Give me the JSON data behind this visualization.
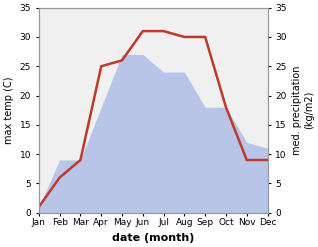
{
  "months": [
    "Jan",
    "Feb",
    "Mar",
    "Apr",
    "May",
    "Jun",
    "Jul",
    "Aug",
    "Sep",
    "Oct",
    "Nov",
    "Dec"
  ],
  "temperature": [
    1,
    6,
    9,
    25,
    26,
    31,
    31,
    30,
    30,
    18,
    9,
    9
  ],
  "precipitation": [
    1,
    9,
    9,
    18,
    27,
    27,
    24,
    24,
    18,
    18,
    12,
    11
  ],
  "temp_color": "#c0392b",
  "precip_color_fill": "#b8c4e8",
  "ylabel_left": "max temp (C)",
  "ylabel_right": "med. precipitation\n(kg/m2)",
  "xlabel": "date (month)",
  "ylim": [
    0,
    35
  ],
  "bg_color": "#ffffff",
  "plot_bg_color": "#f0f0f0",
  "spine_color": "#999999",
  "label_fontsize": 7,
  "tick_fontsize": 6.5,
  "xlabel_fontsize": 8
}
